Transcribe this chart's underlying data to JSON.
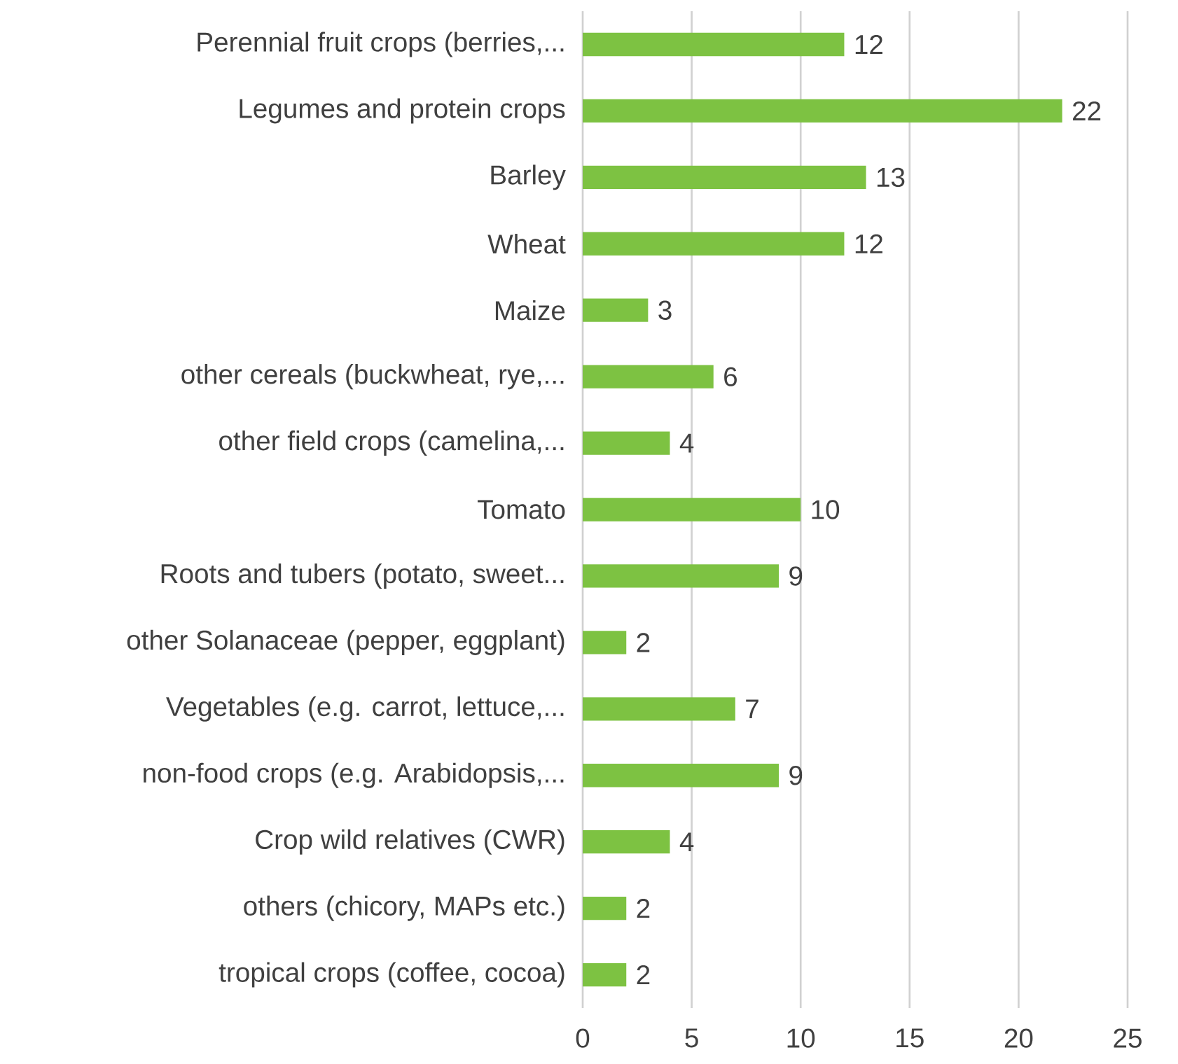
{
  "chart_data": {
    "type": "bar",
    "orientation": "horizontal",
    "categories": [
      "Perennial fruit crops (berries,...",
      "Legumes and protein crops",
      "Barley",
      "Wheat",
      "Maize",
      "other cereals (buckwheat, rye,...",
      "other field crops (camelina,...",
      "Tomato",
      "Roots and tubers (potato, sweet...",
      "other Solanaceae (pepper, eggplant)",
      "Vegetables (e.g. carrot, lettuce,...",
      "non-food crops (e.g. Arabidopsis,...",
      "Crop wild relatives (CWR)",
      "others (chicory, MAPs etc.)",
      "tropical crops (coffee, cocoa)"
    ],
    "values": [
      12,
      22,
      13,
      12,
      3,
      6,
      4,
      10,
      9,
      2,
      7,
      9,
      4,
      2,
      2
    ],
    "color": "#7dc242",
    "xlim": [
      0,
      25
    ],
    "xticks": [
      0,
      5,
      10,
      15,
      20,
      25
    ],
    "grid": "x",
    "data_labels": true
  }
}
